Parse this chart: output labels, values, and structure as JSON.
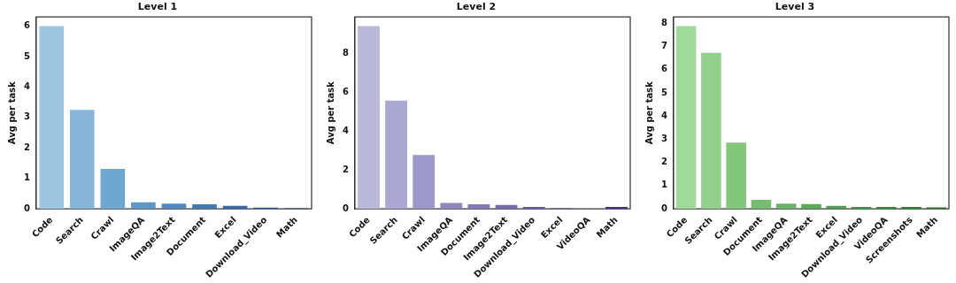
{
  "chart_data": [
    {
      "type": "bar",
      "title": "Level 1",
      "ylabel": "Avg per task",
      "categories": [
        "Code",
        "Search",
        "Crawl",
        "ImageQA",
        "Image2Text",
        "Document",
        "Excel",
        "Download_Video",
        "Math"
      ],
      "values": [
        6.0,
        3.25,
        1.31,
        0.21,
        0.17,
        0.15,
        0.1,
        0.04,
        0.02
      ],
      "colors": [
        "#9dc5df",
        "#87b6d8",
        "#6fa7d0",
        "#5d97c8",
        "#5089c0",
        "#4379b5",
        "#3769a9",
        "#2c5b9d",
        "#214c8f"
      ],
      "ylim": [
        0,
        6.3
      ],
      "yticks": [
        0,
        1,
        2,
        3,
        4,
        5,
        6
      ],
      "grid": false
    },
    {
      "type": "bar",
      "title": "Level 2",
      "ylabel": "Avg per task",
      "categories": [
        "Code",
        "Search",
        "Crawl",
        "ImageQA",
        "Document",
        "Image2Text",
        "Download_Video",
        "Excel",
        "VideoQA",
        "Math"
      ],
      "values": [
        9.39,
        5.56,
        2.76,
        0.3,
        0.23,
        0.2,
        0.09,
        0.03,
        0,
        0.09
      ],
      "colors": [
        "#b9b8d8",
        "#aaa8d0",
        "#9c98c7",
        "#8f88bd",
        "#8379b4",
        "#786aab",
        "#6c5aa2",
        "#604a99",
        "#553a90",
        "#4a2a87"
      ],
      "ylim": [
        0,
        9.86
      ],
      "yticks": [
        0,
        2,
        4,
        6,
        8
      ],
      "grid": false
    },
    {
      "type": "bar",
      "title": "Level 3",
      "ylabel": "Avg per task",
      "categories": [
        "Code",
        "Search",
        "Crawl",
        "Document",
        "ImageQA",
        "Image2Text",
        "Excel",
        "Download_Video",
        "VideoQA",
        "Screenshots",
        "Math"
      ],
      "values": [
        7.88,
        6.72,
        2.85,
        0.38,
        0.22,
        0.2,
        0.13,
        0.08,
        0.08,
        0.08,
        0.06
      ],
      "colors": [
        "#a1d99b",
        "#93d08d",
        "#85c67f",
        "#77bc72",
        "#6ab267",
        "#5ea85c",
        "#529e52",
        "#479448",
        "#3c8a3f",
        "#328036",
        "#28762d"
      ],
      "ylim": [
        0,
        8.27
      ],
      "yticks": [
        0,
        1,
        2,
        3,
        4,
        5,
        6,
        7,
        8
      ],
      "grid": false
    }
  ]
}
